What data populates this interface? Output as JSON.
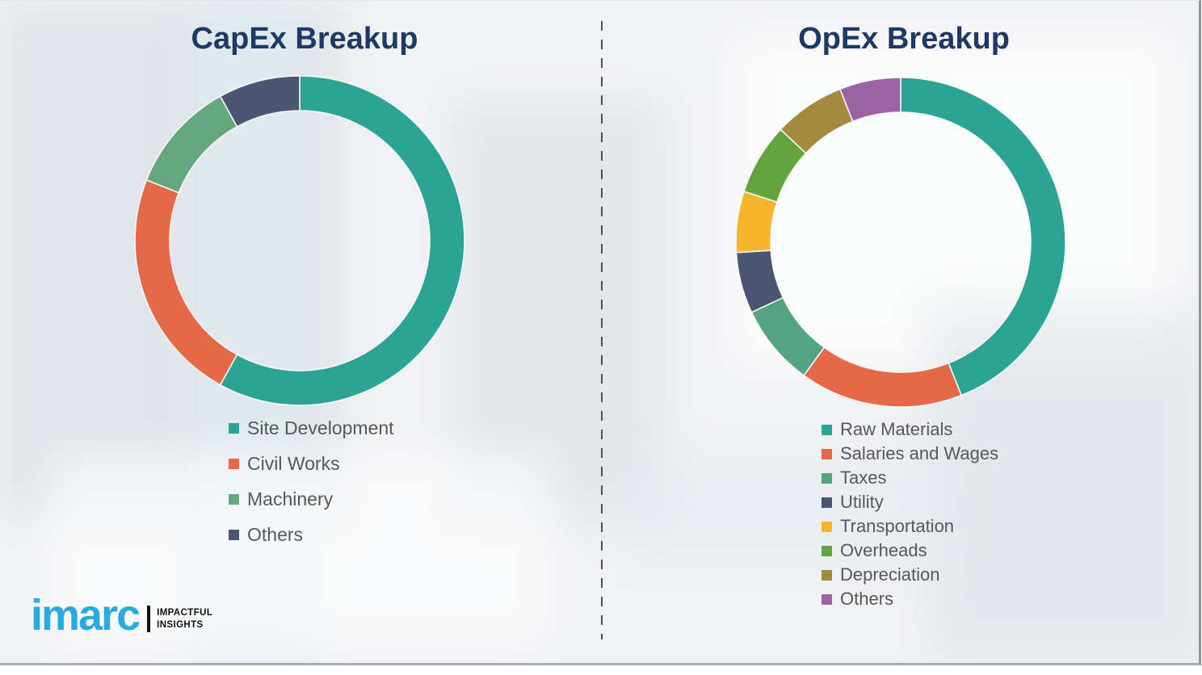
{
  "styles": {
    "title_color": "#1F3864",
    "legend_text_color": "#575757",
    "divider_color": "#4f4f4f",
    "background_color": "#f1f2f4",
    "segment_gap_color": "#f6f7f8"
  },
  "chart_data": [
    {
      "type": "pie",
      "subtype": "donut",
      "title": "CapEx Breakup",
      "legend_position": "below-left",
      "grid": false,
      "categories": [
        "Site Development",
        "Civil Works",
        "Machinery",
        "Others"
      ],
      "values": [
        58,
        23,
        11,
        8
      ],
      "unit": "percent-of-total",
      "colors": [
        "#2BA496",
        "#E56947",
        "#66A67F",
        "#4B5470"
      ]
    },
    {
      "type": "pie",
      "subtype": "donut",
      "title": "OpEx Breakup",
      "legend_position": "below-left",
      "grid": false,
      "categories": [
        "Raw Materials",
        "Salaries and Wages",
        "Taxes",
        "Utility",
        "Transportation",
        "Overheads",
        "Depreciation",
        "Others"
      ],
      "values": [
        44,
        16,
        8,
        6,
        6,
        7,
        7,
        6
      ],
      "unit": "percent-of-total",
      "colors": [
        "#2BA496",
        "#E56947",
        "#56A381",
        "#4B5470",
        "#F6B62C",
        "#63A53C",
        "#A38A3F",
        "#9B62A4"
      ]
    }
  ],
  "branding": {
    "logo_text": "imarc",
    "tagline_line1": "IMPACTFUL",
    "tagline_line2": "INSIGHTS",
    "logo_color": "#29ABE2"
  }
}
